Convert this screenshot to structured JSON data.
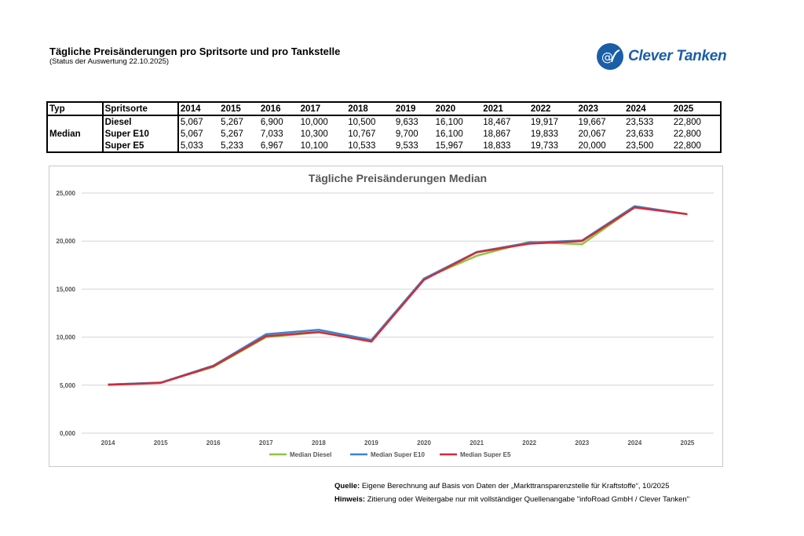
{
  "header": {
    "title": "Tägliche Preisänderungen pro Spritsorte und pro Tankstelle",
    "subtitle": "(Status der Auswertung 22.10.2025)",
    "logo_text": "Clever Tanken"
  },
  "table": {
    "headers": [
      "Typ",
      "Spritsorte",
      "2014",
      "2015",
      "2016",
      "2017",
      "2018",
      "2019",
      "2020",
      "2021",
      "2022",
      "2023",
      "2024",
      "2025"
    ],
    "type_label": "Median",
    "rows": [
      {
        "fuel": "Diesel",
        "values": [
          "5,067",
          "5,267",
          "6,900",
          "10,000",
          "10,500",
          "9,633",
          "16,100",
          "18,467",
          "19,917",
          "19,667",
          "23,533",
          "22,800"
        ]
      },
      {
        "fuel": "Super E10",
        "values": [
          "5,067",
          "5,267",
          "7,033",
          "10,300",
          "10,767",
          "9,700",
          "16,100",
          "18,867",
          "19,833",
          "20,067",
          "23,633",
          "22,800"
        ]
      },
      {
        "fuel": "Super E5",
        "values": [
          "5,033",
          "5,233",
          "6,967",
          "10,100",
          "10,533",
          "9,533",
          "15,967",
          "18,833",
          "19,733",
          "20,000",
          "23,500",
          "22,800"
        ]
      }
    ]
  },
  "chart_data": {
    "type": "line",
    "title": "Tägliche Preisänderungen Median",
    "categories": [
      "2014",
      "2015",
      "2016",
      "2017",
      "2018",
      "2019",
      "2020",
      "2021",
      "2022",
      "2023",
      "2024",
      "2025"
    ],
    "ylim": [
      0,
      25000
    ],
    "yticks": [
      "0,000",
      "5,000",
      "10,000",
      "15,000",
      "20,000",
      "25,000"
    ],
    "grid": true,
    "legend": "bottom",
    "series": [
      {
        "name": "Median Diesel",
        "color": "#8cc63e",
        "values": [
          5067,
          5267,
          6900,
          10000,
          10500,
          9633,
          16100,
          18467,
          19917,
          19667,
          23533,
          22800
        ]
      },
      {
        "name": "Median Super E10",
        "color": "#3b84c8",
        "values": [
          5067,
          5267,
          7033,
          10300,
          10767,
          9700,
          16100,
          18867,
          19833,
          20067,
          23633,
          22800
        ]
      },
      {
        "name": "Median Super E5",
        "color": "#d42a3a",
        "values": [
          5033,
          5233,
          6967,
          10100,
          10533,
          9533,
          15967,
          18833,
          19733,
          20000,
          23500,
          22800
        ]
      }
    ]
  },
  "footer": {
    "source_label": "Quelle:",
    "source_text": " Eigene Berechnung auf Basis von Daten der „Markttransparenzstelle für Kraftstoffe“, 10/2025",
    "note_label": "Hinweis:",
    "note_text": " Zitierung oder Weitergabe nur mit vollständiger Quellenangabe \"infoRoad GmbH / Clever Tanken\""
  },
  "colors": {
    "brand": "#1a5ea8"
  }
}
